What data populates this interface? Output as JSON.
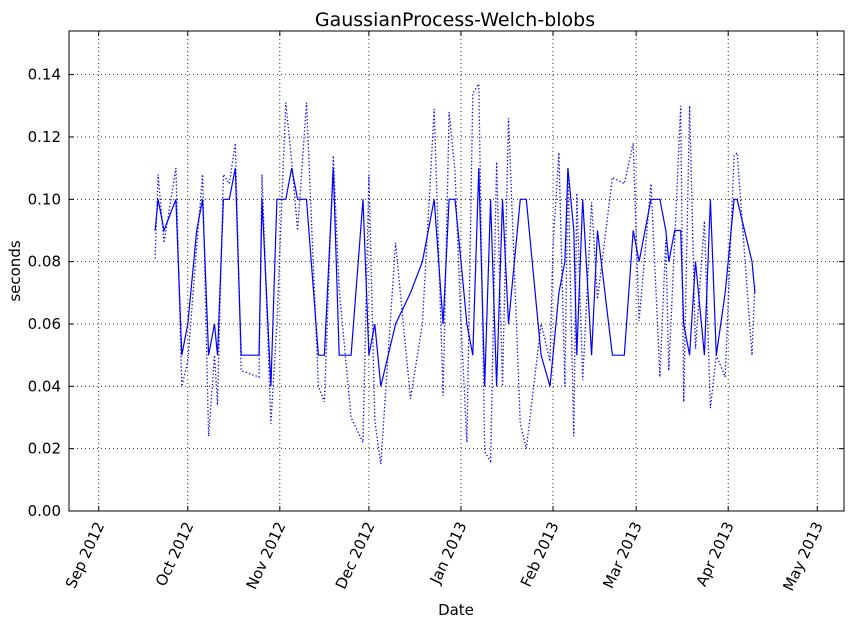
{
  "chart_data": {
    "type": "line",
    "title": "GaussianProcess-Welch-blobs",
    "xlabel": "Date",
    "ylabel": "seconds",
    "ylim": [
      0,
      0.154
    ],
    "xlim": [
      "2012-08-22",
      "2013-05-10"
    ],
    "grid": true,
    "x_ticks": [
      {
        "date": "2012-09-01",
        "label": "Sep 2012"
      },
      {
        "date": "2012-10-01",
        "label": "Oct 2012"
      },
      {
        "date": "2012-11-01",
        "label": "Nov 2012"
      },
      {
        "date": "2012-12-01",
        "label": "Dec 2012"
      },
      {
        "date": "2013-01-01",
        "label": "Jan 2013"
      },
      {
        "date": "2013-02-01",
        "label": "Feb 2013"
      },
      {
        "date": "2013-03-01",
        "label": "Mar 2013"
      },
      {
        "date": "2013-04-01",
        "label": "Apr 2013"
      },
      {
        "date": "2013-05-01",
        "label": "May 2013"
      }
    ],
    "y_ticks": [
      "0.00",
      "0.02",
      "0.04",
      "0.06",
      "0.08",
      "0.10",
      "0.12",
      "0.14"
    ],
    "x": [
      "2012-09-20",
      "2012-09-21",
      "2012-09-23",
      "2012-09-27",
      "2012-09-29",
      "2012-10-01",
      "2012-10-04",
      "2012-10-06",
      "2012-10-08",
      "2012-10-10",
      "2012-10-11",
      "2012-10-13",
      "2012-10-15",
      "2012-10-17",
      "2012-10-19",
      "2012-10-25",
      "2012-10-26",
      "2012-10-29",
      "2012-10-31",
      "2012-11-03",
      "2012-11-05",
      "2012-11-07",
      "2012-11-10",
      "2012-11-14",
      "2012-11-16",
      "2012-11-19",
      "2012-11-21",
      "2012-11-25",
      "2012-11-29",
      "2012-12-01",
      "2012-12-03",
      "2012-12-05",
      "2012-12-10",
      "2012-12-15",
      "2012-12-19",
      "2012-12-23",
      "2012-12-26",
      "2012-12-28",
      "2012-12-30",
      "2013-01-01",
      "2013-01-03",
      "2013-01-05",
      "2013-01-07",
      "2013-01-09",
      "2013-01-11",
      "2013-01-13",
      "2013-01-15",
      "2013-01-17",
      "2013-01-21",
      "2013-01-23",
      "2013-01-28",
      "2013-01-31",
      "2013-02-01",
      "2013-02-03",
      "2013-02-05",
      "2013-02-06",
      "2013-02-08",
      "2013-02-09",
      "2013-02-11",
      "2013-02-14",
      "2013-02-16",
      "2013-02-21",
      "2013-02-25",
      "2013-02-28",
      "2013-03-02",
      "2013-03-06",
      "2013-03-09",
      "2013-03-11",
      "2013-03-12",
      "2013-03-14",
      "2013-03-16",
      "2013-03-17",
      "2013-03-19",
      "2013-03-21",
      "2013-03-24",
      "2013-03-26",
      "2013-03-28",
      "2013-03-31",
      "2013-04-03",
      "2013-04-04",
      "2013-04-09",
      "2013-04-10"
    ],
    "series": [
      {
        "style": "solid",
        "color": "#0000ff",
        "values": [
          0.09,
          0.1,
          0.09,
          0.1,
          0.05,
          0.06,
          0.09,
          0.1,
          0.05,
          0.06,
          0.05,
          0.1,
          0.1,
          0.11,
          0.05,
          0.05,
          0.1,
          0.04,
          0.1,
          0.1,
          0.11,
          0.1,
          0.1,
          0.05,
          0.05,
          0.11,
          0.05,
          0.05,
          0.1,
          0.05,
          0.06,
          0.04,
          0.06,
          0.07,
          0.08,
          0.1,
          0.06,
          0.1,
          0.1,
          0.08,
          0.06,
          0.05,
          0.11,
          0.04,
          0.1,
          0.04,
          0.1,
          0.06,
          0.1,
          0.1,
          0.05,
          0.04,
          0.05,
          0.07,
          0.08,
          0.11,
          0.09,
          0.05,
          0.1,
          0.05,
          0.09,
          0.05,
          0.05,
          0.09,
          0.08,
          0.1,
          0.1,
          0.09,
          0.08,
          0.09,
          0.09,
          0.06,
          0.05,
          0.08,
          0.05,
          0.1,
          0.05,
          0.07,
          0.1,
          0.1,
          0.08,
          0.07
        ]
      },
      {
        "style": "dotted",
        "color": "#0000ff",
        "values": [
          0.081,
          0.108,
          0.086,
          0.11,
          0.04,
          0.048,
          0.085,
          0.108,
          0.024,
          0.05,
          0.034,
          0.108,
          0.105,
          0.118,
          0.045,
          0.043,
          0.108,
          0.028,
          0.06,
          0.131,
          0.112,
          0.09,
          0.131,
          0.04,
          0.035,
          0.114,
          0.071,
          0.03,
          0.022,
          0.108,
          0.029,
          0.015,
          0.086,
          0.036,
          0.06,
          0.129,
          0.037,
          0.128,
          0.109,
          0.06,
          0.022,
          0.134,
          0.137,
          0.019,
          0.016,
          0.112,
          0.04,
          0.126,
          0.028,
          0.02,
          0.06,
          0.048,
          0.085,
          0.115,
          0.04,
          0.11,
          0.024,
          0.102,
          0.042,
          0.099,
          0.068,
          0.107,
          0.105,
          0.118,
          0.061,
          0.105,
          0.043,
          0.087,
          0.045,
          0.087,
          0.13,
          0.035,
          0.13,
          0.052,
          0.093,
          0.033,
          0.05,
          0.043,
          0.114,
          0.115,
          0.05,
          0.073
        ]
      }
    ]
  }
}
